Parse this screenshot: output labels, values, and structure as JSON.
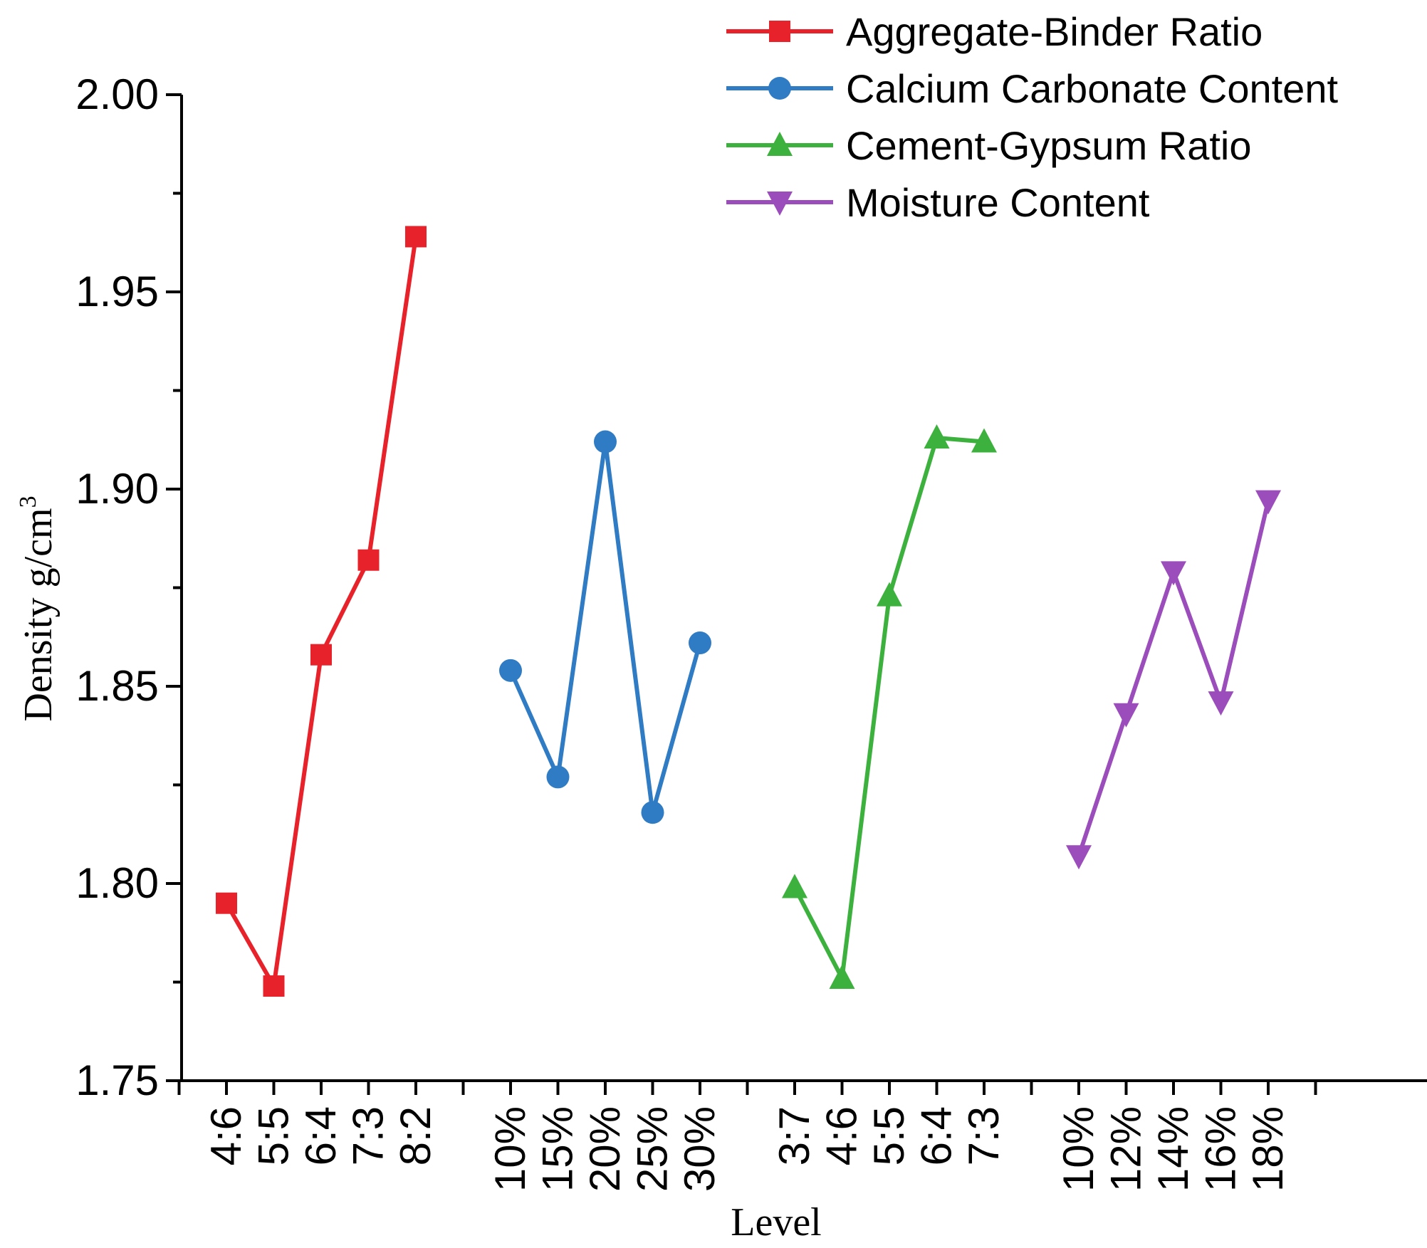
{
  "chart_data": {
    "type": "line",
    "title": "",
    "xlabel": "Level",
    "ylabel": "Density g/cm",
    "ylabel_superscript": "3",
    "ylim": [
      1.75,
      2.0
    ],
    "yticks": [
      "1.75",
      "1.80",
      "1.85",
      "1.90",
      "1.95",
      "2.00"
    ],
    "grid": false,
    "legend_position": "top-right",
    "series": [
      {
        "name": "Aggregate-Binder Ratio",
        "color": "#e8222a",
        "marker": "square",
        "categories": [
          "4:6",
          "5:5",
          "6:4",
          "7:3",
          "8:2"
        ],
        "values": [
          1.795,
          1.774,
          1.858,
          1.882,
          1.964
        ]
      },
      {
        "name": "Calcium Carbonate Content",
        "color": "#2f7bc4",
        "marker": "circle",
        "categories": [
          "10%",
          "15%",
          "20%",
          "25%",
          "30%"
        ],
        "values": [
          1.854,
          1.827,
          1.912,
          1.818,
          1.861
        ]
      },
      {
        "name": "Cement-Gypsum Ratio",
        "color": "#3db13d",
        "marker": "triangle-up",
        "categories": [
          "3:7",
          "4:6",
          "5:5",
          "6:4",
          "7:3"
        ],
        "values": [
          1.799,
          1.776,
          1.873,
          1.913,
          1.912
        ]
      },
      {
        "name": "Moisture Content",
        "color": "#9b4dbb",
        "marker": "triangle-down",
        "categories": [
          "10%",
          "12%",
          "14%",
          "16%",
          "18%"
        ],
        "values": [
          1.807,
          1.843,
          1.879,
          1.846,
          1.897
        ]
      }
    ]
  }
}
